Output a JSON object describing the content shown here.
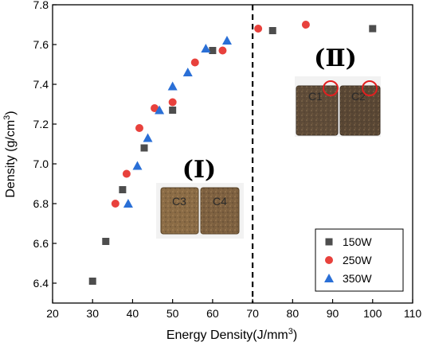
{
  "chart_data": {
    "type": "scatter",
    "xlabel": "Energy Density(J/mm",
    "xlabel_sup": "3",
    "xlabel_end": ")",
    "ylabel": "Density (g/cm",
    "ylabel_sup": "3",
    "ylabel_end": ")",
    "xlim": [
      20,
      110
    ],
    "ylim": [
      6.3,
      7.8
    ],
    "xticks": [
      20,
      30,
      40,
      50,
      60,
      70,
      80,
      90,
      100,
      110
    ],
    "yticks": [
      6.4,
      6.6,
      6.8,
      7.0,
      7.2,
      7.4,
      7.6,
      7.8
    ],
    "xtick_labels": [
      "20",
      "30",
      "40",
      "50",
      "60",
      "70",
      "80",
      "90",
      "100",
      "110"
    ],
    "ytick_labels": [
      "6.4",
      "6.6",
      "6.8",
      "7.0",
      "7.2",
      "7.4",
      "7.6",
      "7.8"
    ],
    "divider_x": 70,
    "legend_position": "lower-right",
    "series": [
      {
        "name": "150W",
        "marker": "square",
        "color": "#4d4d4d",
        "points": [
          [
            30,
            6.41
          ],
          [
            33.3,
            6.61
          ],
          [
            37.5,
            6.87
          ],
          [
            42.9,
            7.08
          ],
          [
            50,
            7.27
          ],
          [
            60,
            7.57
          ],
          [
            75,
            7.67
          ],
          [
            100,
            7.68
          ]
        ]
      },
      {
        "name": "250W",
        "marker": "circle",
        "color": "#e8413c",
        "points": [
          [
            35.7,
            6.8
          ],
          [
            38.5,
            6.95
          ],
          [
            41.7,
            7.18
          ],
          [
            45.5,
            7.28
          ],
          [
            50,
            7.31
          ],
          [
            55.6,
            7.51
          ],
          [
            62.5,
            7.57
          ],
          [
            71.4,
            7.68
          ],
          [
            83.3,
            7.7
          ]
        ]
      },
      {
        "name": "350W",
        "marker": "triangle",
        "color": "#2a6fd6",
        "points": [
          [
            38.9,
            6.8
          ],
          [
            41.2,
            6.99
          ],
          [
            43.8,
            7.13
          ],
          [
            46.7,
            7.27
          ],
          [
            50,
            7.39
          ],
          [
            53.8,
            7.46
          ],
          [
            58.3,
            7.58
          ],
          [
            63.6,
            7.62
          ]
        ]
      }
    ],
    "annotations": {
      "region_1": "(Ⅰ)",
      "region_2": "(Ⅱ)",
      "cube_labels": [
        "C3",
        "C4",
        "C1",
        "C2"
      ]
    }
  }
}
